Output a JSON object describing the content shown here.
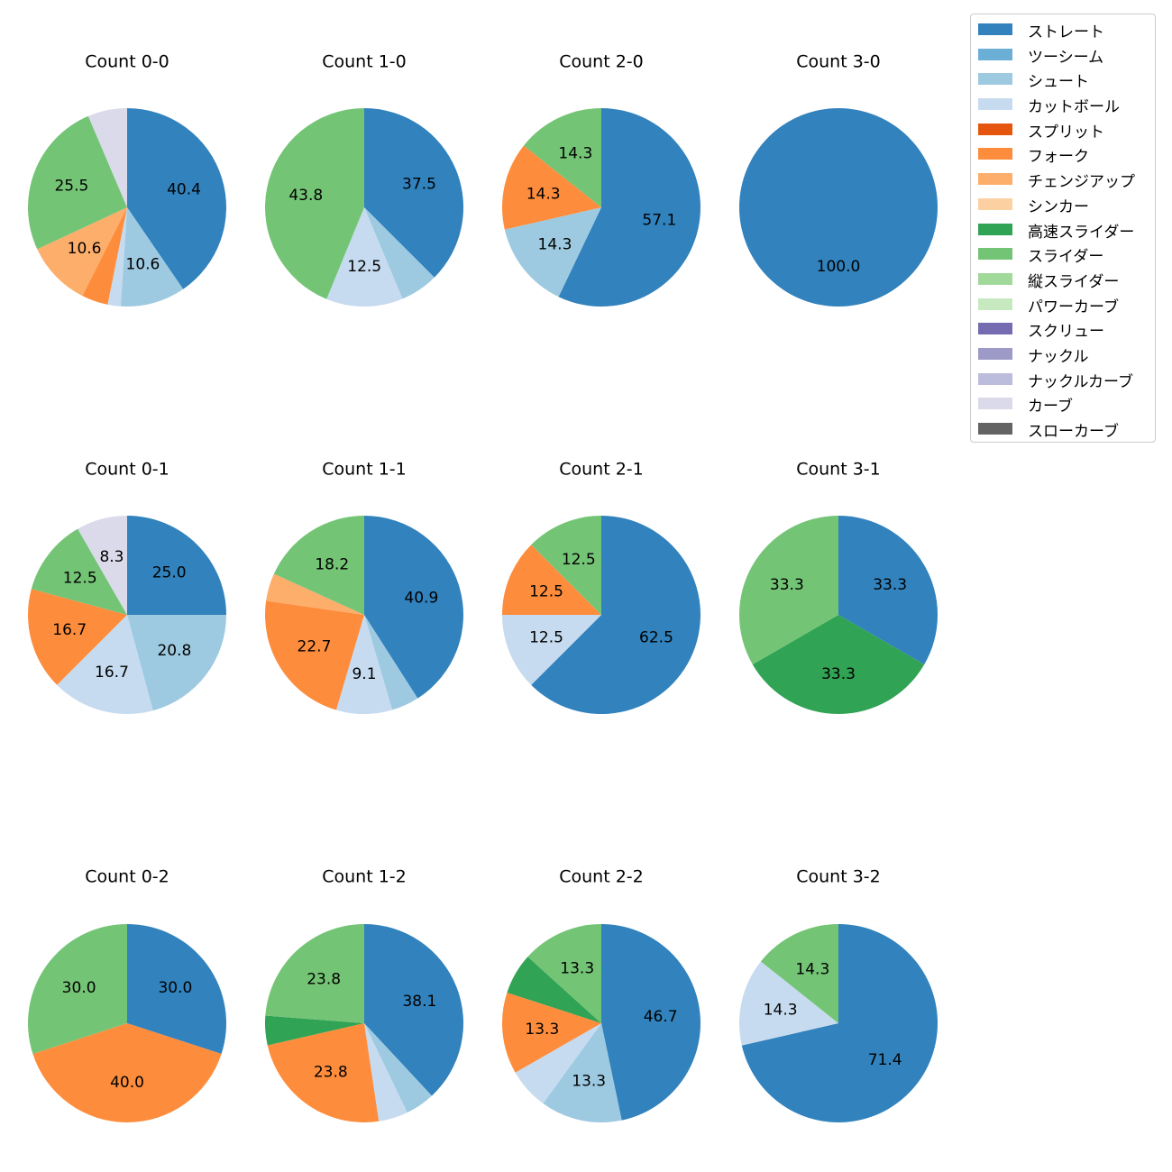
{
  "chart_data": {
    "type": "pie",
    "legend_position": "top-right",
    "legend": [
      {
        "name": "ストレート",
        "color": "#3182bd"
      },
      {
        "name": "ツーシーム",
        "color": "#6baed6"
      },
      {
        "name": "シュート",
        "color": "#9ecae1"
      },
      {
        "name": "カットボール",
        "color": "#c6dbef"
      },
      {
        "name": "スプリット",
        "color": "#e6550d"
      },
      {
        "name": "フォーク",
        "color": "#fd8d3c"
      },
      {
        "name": "チェンジアップ",
        "color": "#fdae6b"
      },
      {
        "name": "シンカー",
        "color": "#fdd0a2"
      },
      {
        "name": "高速スライダー",
        "color": "#31a354"
      },
      {
        "name": "スライダー",
        "color": "#74c476"
      },
      {
        "name": "縦スライダー",
        "color": "#a1d99b"
      },
      {
        "name": "パワーカーブ",
        "color": "#c7e9c0"
      },
      {
        "name": "スクリュー",
        "color": "#756bb1"
      },
      {
        "name": "ナックル",
        "color": "#9e9ac8"
      },
      {
        "name": "ナックルカーブ",
        "color": "#bcbddc"
      },
      {
        "name": "カーブ",
        "color": "#dadaeb"
      },
      {
        "name": "スローカーブ",
        "color": "#636363"
      }
    ],
    "charts": [
      {
        "title": "Count 0-0",
        "slices": [
          {
            "pitch": "ストレート",
            "value": 40.4,
            "label": "40.4"
          },
          {
            "pitch": "シュート",
            "value": 10.6,
            "label": "10.6"
          },
          {
            "pitch": "カットボール",
            "value": 2.1,
            "label": ""
          },
          {
            "pitch": "フォーク",
            "value": 4.3,
            "label": ""
          },
          {
            "pitch": "チェンジアップ",
            "value": 10.6,
            "label": "10.6"
          },
          {
            "pitch": "スライダー",
            "value": 25.5,
            "label": "25.5"
          },
          {
            "pitch": "カーブ",
            "value": 6.4,
            "label": ""
          }
        ]
      },
      {
        "title": "Count 1-0",
        "slices": [
          {
            "pitch": "ストレート",
            "value": 37.5,
            "label": "37.5"
          },
          {
            "pitch": "シュート",
            "value": 6.2,
            "label": ""
          },
          {
            "pitch": "カットボール",
            "value": 12.5,
            "label": "12.5"
          },
          {
            "pitch": "スライダー",
            "value": 43.8,
            "label": "43.8"
          }
        ]
      },
      {
        "title": "Count 2-0",
        "slices": [
          {
            "pitch": "ストレート",
            "value": 57.1,
            "label": "57.1"
          },
          {
            "pitch": "シュート",
            "value": 14.3,
            "label": "14.3"
          },
          {
            "pitch": "フォーク",
            "value": 14.3,
            "label": "14.3"
          },
          {
            "pitch": "スライダー",
            "value": 14.3,
            "label": "14.3"
          }
        ]
      },
      {
        "title": "Count 3-0",
        "slices": [
          {
            "pitch": "ストレート",
            "value": 100.0,
            "label": "100.0"
          }
        ]
      },
      {
        "title": "Count 0-1",
        "slices": [
          {
            "pitch": "ストレート",
            "value": 25.0,
            "label": "25.0"
          },
          {
            "pitch": "シュート",
            "value": 20.8,
            "label": "20.8"
          },
          {
            "pitch": "カットボール",
            "value": 16.7,
            "label": "16.7"
          },
          {
            "pitch": "フォーク",
            "value": 16.7,
            "label": "16.7"
          },
          {
            "pitch": "スライダー",
            "value": 12.5,
            "label": "12.5"
          },
          {
            "pitch": "カーブ",
            "value": 8.3,
            "label": "8.3"
          }
        ]
      },
      {
        "title": "Count 1-1",
        "slices": [
          {
            "pitch": "ストレート",
            "value": 40.9,
            "label": "40.9"
          },
          {
            "pitch": "シュート",
            "value": 4.5,
            "label": ""
          },
          {
            "pitch": "カットボール",
            "value": 9.1,
            "label": "9.1"
          },
          {
            "pitch": "フォーク",
            "value": 22.7,
            "label": "22.7"
          },
          {
            "pitch": "チェンジアップ",
            "value": 4.5,
            "label": ""
          },
          {
            "pitch": "スライダー",
            "value": 18.2,
            "label": "18.2"
          }
        ]
      },
      {
        "title": "Count 2-1",
        "slices": [
          {
            "pitch": "ストレート",
            "value": 62.5,
            "label": "62.5"
          },
          {
            "pitch": "カットボール",
            "value": 12.5,
            "label": "12.5"
          },
          {
            "pitch": "フォーク",
            "value": 12.5,
            "label": "12.5"
          },
          {
            "pitch": "スライダー",
            "value": 12.5,
            "label": "12.5"
          }
        ]
      },
      {
        "title": "Count 3-1",
        "slices": [
          {
            "pitch": "ストレート",
            "value": 33.3,
            "label": "33.3"
          },
          {
            "pitch": "高速スライダー",
            "value": 33.3,
            "label": "33.3"
          },
          {
            "pitch": "スライダー",
            "value": 33.3,
            "label": "33.3"
          }
        ]
      },
      {
        "title": "Count 0-2",
        "slices": [
          {
            "pitch": "ストレート",
            "value": 30.0,
            "label": "30.0"
          },
          {
            "pitch": "フォーク",
            "value": 40.0,
            "label": "40.0"
          },
          {
            "pitch": "スライダー",
            "value": 30.0,
            "label": "30.0"
          }
        ]
      },
      {
        "title": "Count 1-2",
        "slices": [
          {
            "pitch": "ストレート",
            "value": 38.1,
            "label": "38.1"
          },
          {
            "pitch": "シュート",
            "value": 4.8,
            "label": ""
          },
          {
            "pitch": "カットボール",
            "value": 4.8,
            "label": ""
          },
          {
            "pitch": "フォーク",
            "value": 23.8,
            "label": "23.8"
          },
          {
            "pitch": "高速スライダー",
            "value": 4.8,
            "label": ""
          },
          {
            "pitch": "スライダー",
            "value": 23.8,
            "label": "23.8"
          }
        ]
      },
      {
        "title": "Count 2-2",
        "slices": [
          {
            "pitch": "ストレート",
            "value": 46.7,
            "label": "46.7"
          },
          {
            "pitch": "シュート",
            "value": 13.3,
            "label": "13.3"
          },
          {
            "pitch": "カットボール",
            "value": 6.7,
            "label": ""
          },
          {
            "pitch": "フォーク",
            "value": 13.3,
            "label": "13.3"
          },
          {
            "pitch": "高速スライダー",
            "value": 6.7,
            "label": ""
          },
          {
            "pitch": "スライダー",
            "value": 13.3,
            "label": "13.3"
          }
        ]
      },
      {
        "title": "Count 3-2",
        "slices": [
          {
            "pitch": "ストレート",
            "value": 71.4,
            "label": "71.4"
          },
          {
            "pitch": "カットボール",
            "value": 14.3,
            "label": "14.3"
          },
          {
            "pitch": "スライダー",
            "value": 14.3,
            "label": "14.3"
          }
        ]
      }
    ]
  }
}
